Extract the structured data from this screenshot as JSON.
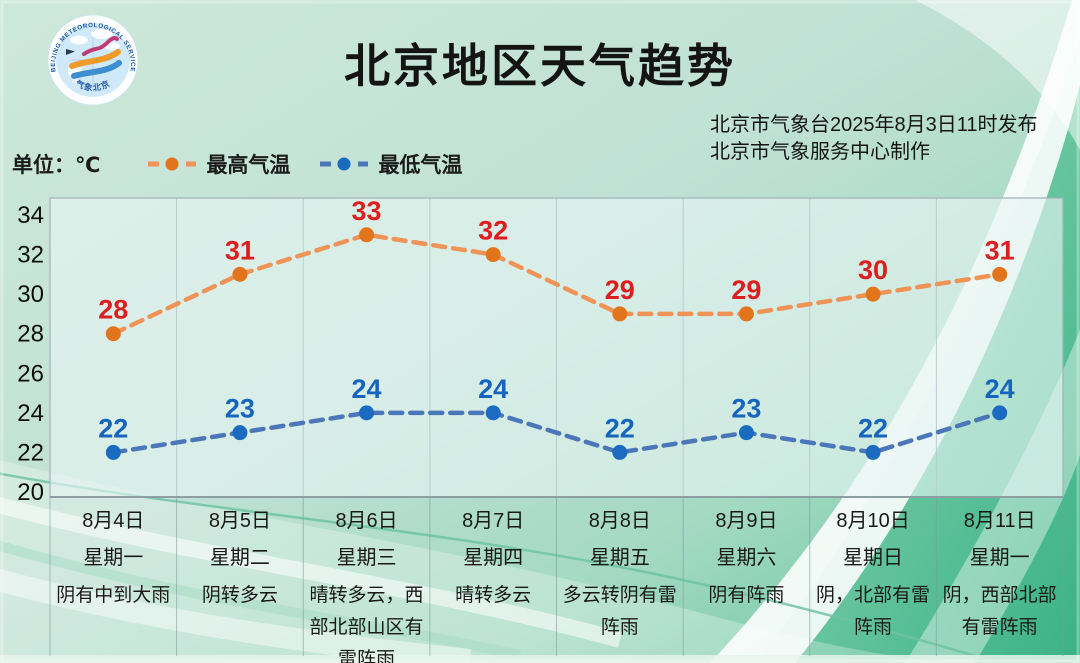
{
  "header": {
    "title": "北京地区天气趋势",
    "issued_by": "北京市气象台2025年8月3日11时发布",
    "produced_by": "北京市气象服务中心制作",
    "logo_top_text": "BEIJING METEOROLOGICAL SERVICE",
    "logo_bottom_text": "气象北京"
  },
  "legend": {
    "unit_label": "单位：℃",
    "high_label": "最高气温",
    "low_label": "最低气温"
  },
  "chart_data": {
    "type": "line",
    "categories": [
      "8月4日",
      "8月5日",
      "8月6日",
      "8月7日",
      "8月8日",
      "8月9日",
      "8月10日",
      "8月11日"
    ],
    "series": [
      {
        "name": "最高气温",
        "values": [
          28,
          31,
          33,
          32,
          29,
          29,
          30,
          31
        ],
        "line_color": "#EF9357",
        "point_color": "#E2751C",
        "label_color": "#DC1E1E",
        "style": "dashed"
      },
      {
        "name": "最低气温",
        "values": [
          22,
          23,
          24,
          24,
          22,
          23,
          22,
          24
        ],
        "line_color": "#4B77B8",
        "point_color": "#1B6CC0",
        "label_color": "#1565BE",
        "style": "dashed"
      }
    ],
    "ylim": [
      20,
      34
    ],
    "yticks": [
      34,
      32,
      30,
      28,
      26,
      24,
      22,
      20
    ],
    "grid": "vertical-only",
    "legend_position": "top-left",
    "title": "北京地区天气趋势",
    "ylabel_unit": "℃"
  },
  "days": [
    {
      "date": "8月4日",
      "weekday": "星期一",
      "weather": "阴有中到大雨"
    },
    {
      "date": "8月5日",
      "weekday": "星期二",
      "weather": "阴转多云"
    },
    {
      "date": "8月6日",
      "weekday": "星期三",
      "weather": "晴转多云，西部北部山区有雷阵雨"
    },
    {
      "date": "8月7日",
      "weekday": "星期四",
      "weather": "晴转多云"
    },
    {
      "date": "8月8日",
      "weekday": "星期五",
      "weather": "多云转阴有雷阵雨"
    },
    {
      "date": "8月9日",
      "weekday": "星期六",
      "weather": "阴有阵雨"
    },
    {
      "date": "8月10日",
      "weekday": "星期日",
      "weather": "阴，北部有雷阵雨"
    },
    {
      "date": "8月11日",
      "weekday": "星期一",
      "weather": "阴，西部北部有雷阵雨"
    }
  ]
}
